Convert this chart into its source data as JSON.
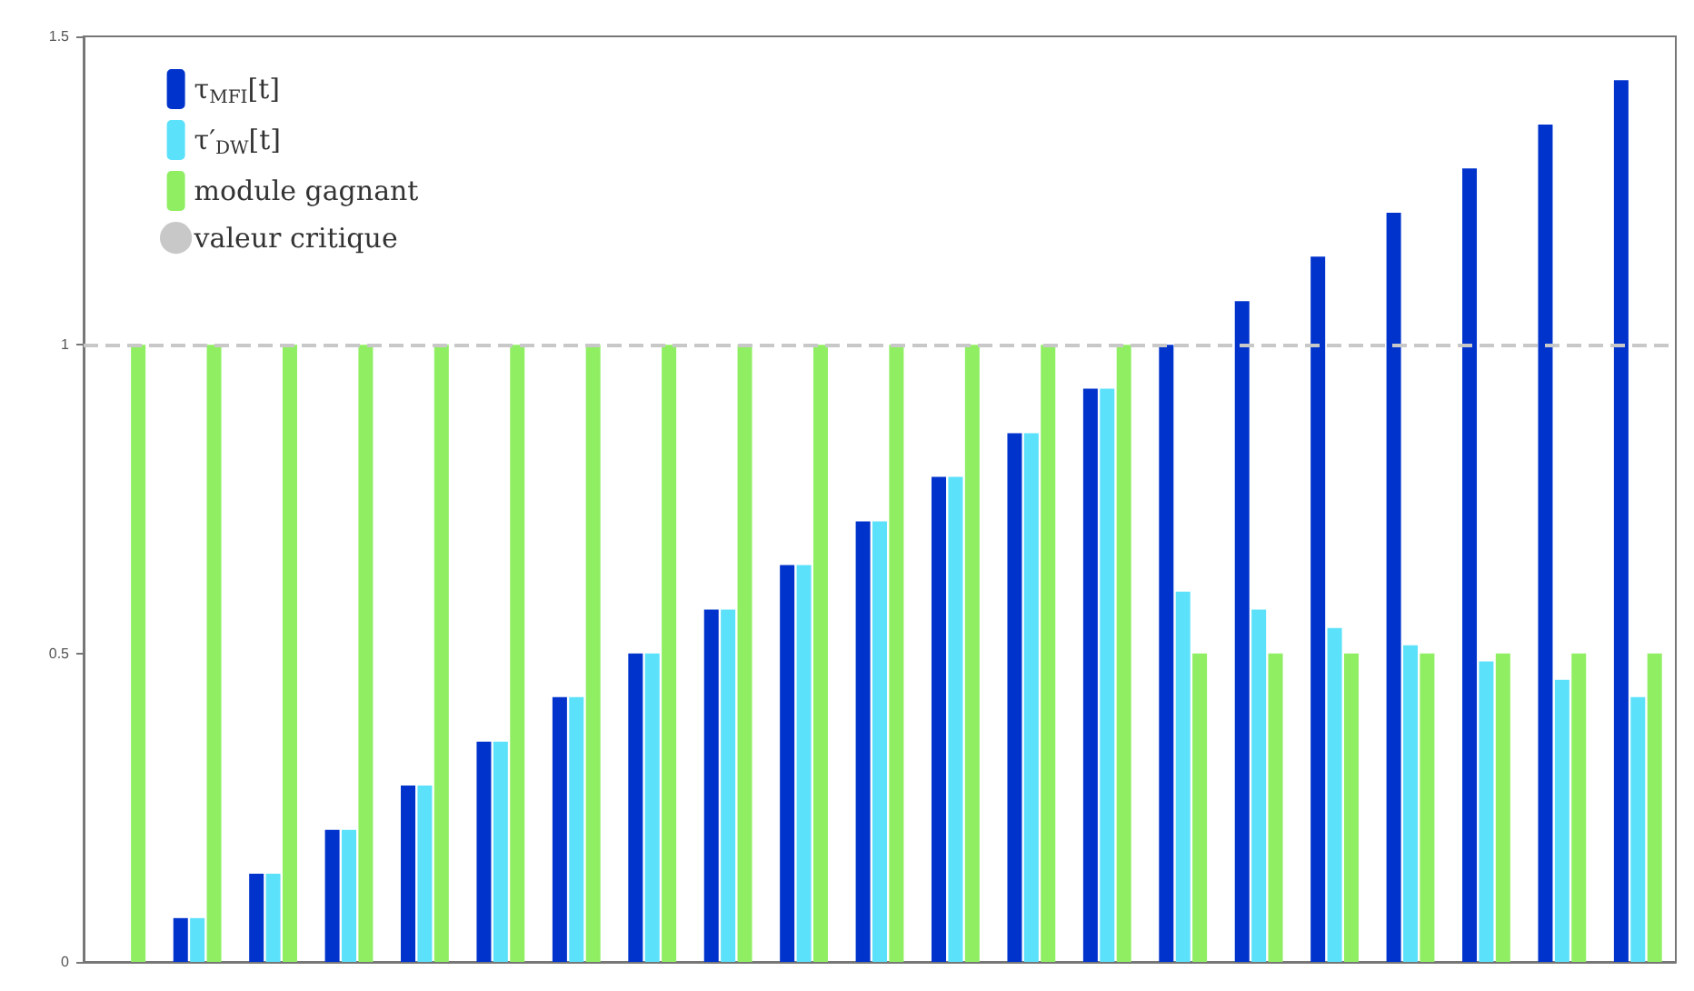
{
  "chart_data": {
    "type": "bar",
    "categories": [
      null,
      null,
      null,
      null,
      null,
      null,
      null,
      null,
      null,
      null,
      null,
      null,
      null,
      null,
      null,
      null,
      null,
      null,
      null,
      null,
      null
    ],
    "series": [
      {
        "name": "τ$_{MFI}$[t]",
        "color": "#0033cc",
        "values": [
          0,
          0.071,
          0.143,
          0.214,
          0.286,
          0.357,
          0.429,
          0.5,
          0.571,
          0.643,
          0.714,
          0.786,
          0.857,
          0.929,
          1.0,
          1.071,
          1.143,
          1.214,
          1.286,
          1.357,
          1.429
        ]
      },
      {
        "name": "τ′$_{DW}$[t]",
        "color": "#5ce1fa",
        "values": [
          0,
          0.071,
          0.143,
          0.214,
          0.286,
          0.357,
          0.429,
          0.5,
          0.571,
          0.643,
          0.714,
          0.786,
          0.857,
          0.929,
          0.6,
          0.571,
          0.541,
          0.513,
          0.487,
          0.457,
          0.429
        ]
      },
      {
        "name": "module gagnant",
        "color": "#90ee63",
        "values": [
          1,
          1,
          1,
          1,
          1,
          1,
          1,
          1,
          1,
          1,
          1,
          1,
          1,
          1,
          0.5,
          0.5,
          0.5,
          0.5,
          0.5,
          0.5,
          0.5
        ]
      }
    ],
    "ylim": [
      0,
      1.5
    ],
    "yticks": [
      0,
      0.5,
      1,
      1.5
    ],
    "ref_lines": [
      {
        "axis": "y",
        "value": 1,
        "label": "valeur critique",
        "color": "#c8c8c8",
        "line_style": "dashed"
      }
    ],
    "legend": "top left",
    "grid": false,
    "tick_labels": "y"
  }
}
